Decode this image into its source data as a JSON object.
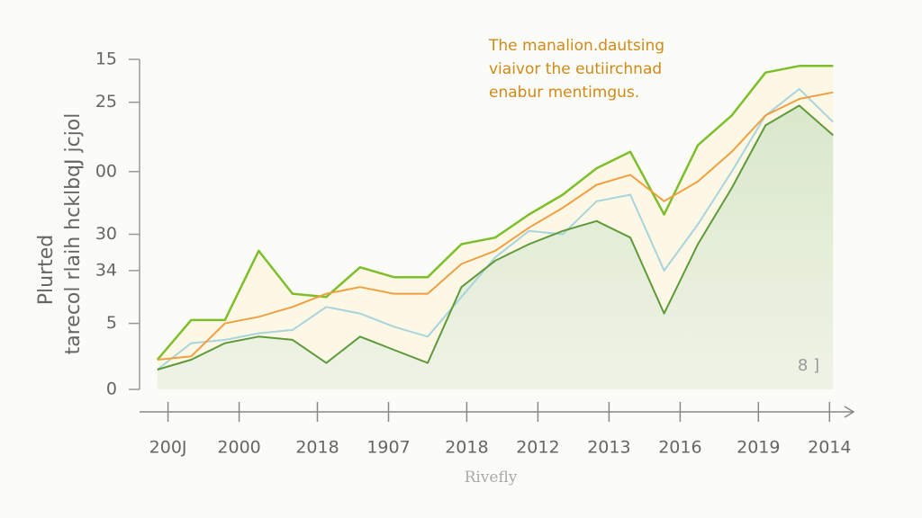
{
  "chart_data": {
    "type": "line",
    "annotation": [
      "The manalion.dautsing",
      "viaivor the eutiirchnad",
      "enabur mentimgus."
    ],
    "ylabel": [
      "Plurted",
      "tarecol rlaih hcklbqJ jcjol"
    ],
    "xlabel": "Rivefly",
    "note": "8 ]",
    "x": [
      2.5,
      7.25,
      12,
      16.75,
      21.5,
      26.25,
      31,
      35.75,
      40.5,
      45.25,
      50,
      54.75,
      59.5,
      64.25,
      69,
      73.75,
      78.5,
      83.25,
      88,
      92.75,
      97.5
    ],
    "xlim": [
      0,
      100
    ],
    "xticks": [
      {
        "value": 4,
        "label": "200J"
      },
      {
        "value": 14,
        "label": "2000"
      },
      {
        "value": 25,
        "label": "2018"
      },
      {
        "value": 35,
        "label": "1907"
      },
      {
        "value": 46,
        "label": "2018"
      },
      {
        "value": 56,
        "label": "2012"
      },
      {
        "value": 66,
        "label": "2013"
      },
      {
        "value": 76,
        "label": "2016"
      },
      {
        "value": 87,
        "label": "2019"
      },
      {
        "value": 97,
        "label": "2014"
      }
    ],
    "ylim": [
      0,
      100
    ],
    "yticks": [
      {
        "value": 100,
        "label": "15"
      },
      {
        "value": 87,
        "label": "25"
      },
      {
        "value": 66,
        "label": "00"
      },
      {
        "value": 47,
        "label": "30"
      },
      {
        "value": 36,
        "label": "34"
      },
      {
        "value": 20,
        "label": "5"
      },
      0
    ],
    "series": [
      {
        "color": "#7cbf2a",
        "values": [
          9,
          21,
          21,
          42,
          29,
          28,
          37,
          34,
          34,
          44,
          46,
          53,
          59,
          67,
          72,
          53,
          74,
          83,
          96,
          98,
          98
        ]
      },
      {
        "color": "#a8d4dc",
        "values": [
          6,
          14,
          15,
          17,
          18,
          25,
          23,
          19,
          16,
          28,
          40,
          48,
          47,
          57,
          59,
          36,
          50,
          66,
          83,
          91,
          81
        ]
      },
      {
        "color": "#f0a040",
        "values": [
          9,
          10,
          20,
          22,
          25,
          29,
          31,
          29,
          29,
          38,
          42,
          49,
          55,
          62,
          65,
          57,
          63,
          72,
          83,
          88,
          90
        ]
      },
      {
        "color": "#5e9a3a",
        "values": [
          6,
          9,
          14,
          16,
          15,
          8,
          16,
          12,
          8,
          31,
          39,
          44,
          48,
          51,
          46,
          23,
          44,
          61,
          80,
          86,
          77
        ]
      }
    ]
  }
}
